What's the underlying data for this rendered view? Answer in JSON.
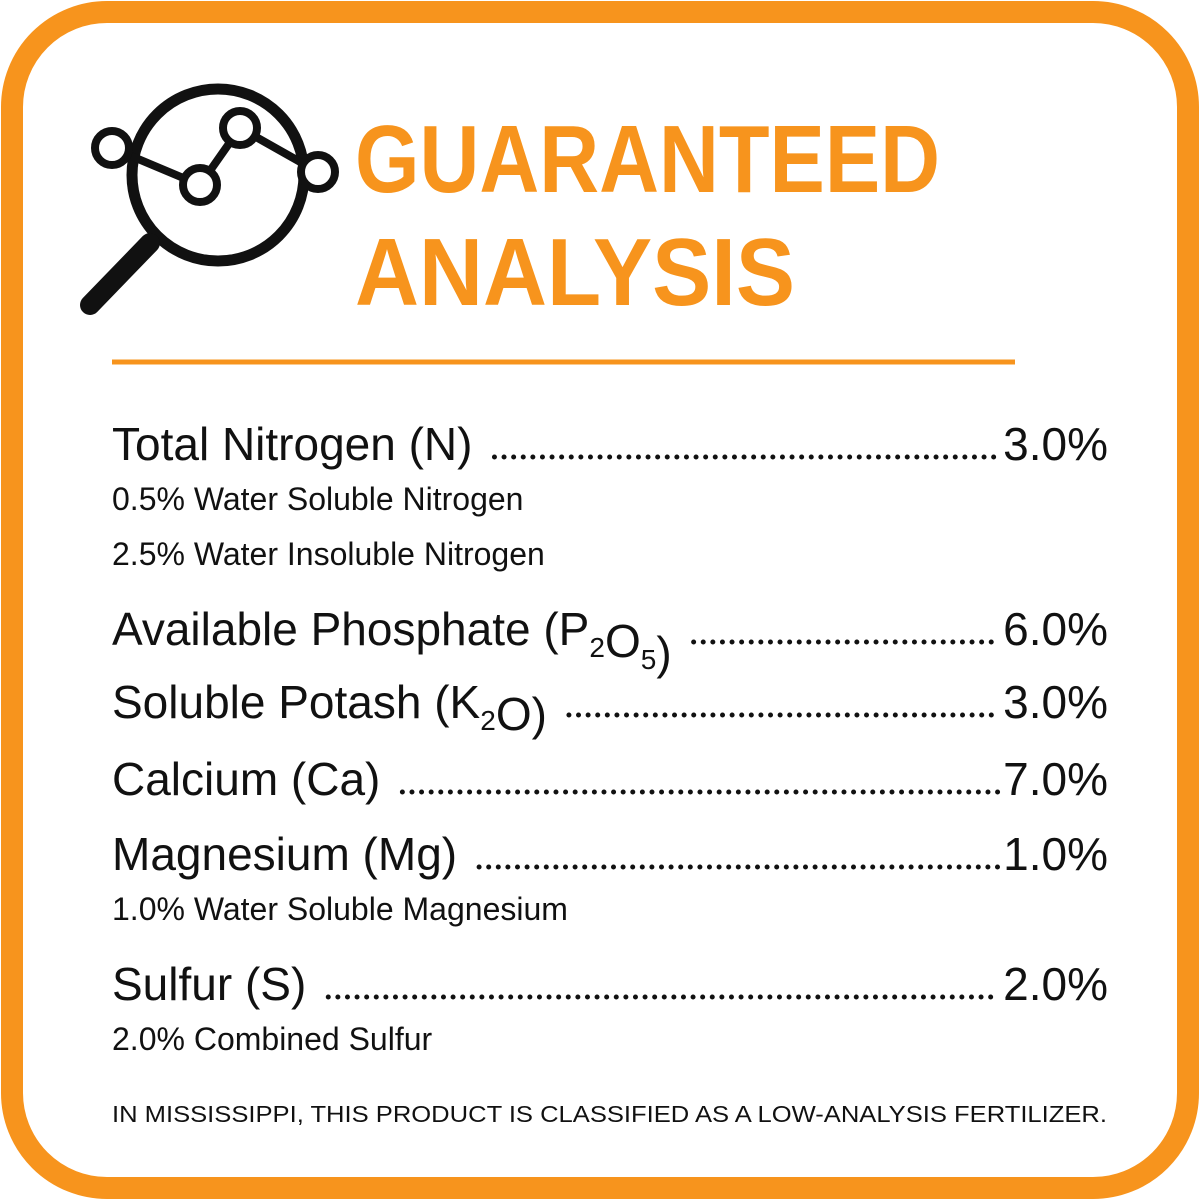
{
  "header": {
    "title": [
      "GUARANTEED",
      "ANALYSIS"
    ]
  },
  "items": [
    {
      "name": [
        {
          "text": "Total Nitrogen (N)"
        }
      ],
      "value": "3.0%",
      "notes": [
        "0.5% Water Soluble Nitrogen",
        "2.5% Water Insoluble Nitrogen"
      ]
    },
    {
      "name": [
        {
          "text": "Available Phosphate (P"
        },
        {
          "sub": "2"
        },
        {
          "text": "O"
        },
        {
          "sub": "5"
        },
        {
          "text": ")"
        }
      ],
      "value": "6.0%",
      "notes": []
    },
    {
      "name": [
        {
          "text": "Soluble Potash (K"
        },
        {
          "sub": "2"
        },
        {
          "text": "O)"
        }
      ],
      "value": "3.0%",
      "notes": []
    },
    {
      "name": [
        {
          "text": "Calcium (Ca)"
        }
      ],
      "value": "7.0%",
      "notes": []
    },
    {
      "name": [
        {
          "text": "Magnesium (Mg)"
        }
      ],
      "value": "1.0%",
      "notes": [
        "1.0% Water Soluble Magnesium"
      ]
    },
    {
      "name": [
        {
          "text": "Sulfur (S)"
        }
      ],
      "value": "2.0%",
      "notes": [
        "2.0% Combined Sulfur"
      ]
    }
  ],
  "footer": "IN MISSISSIPPI, THIS PRODUCT IS CLASSIFIED AS A LOW-ANALYSIS FERTILIZER."
}
